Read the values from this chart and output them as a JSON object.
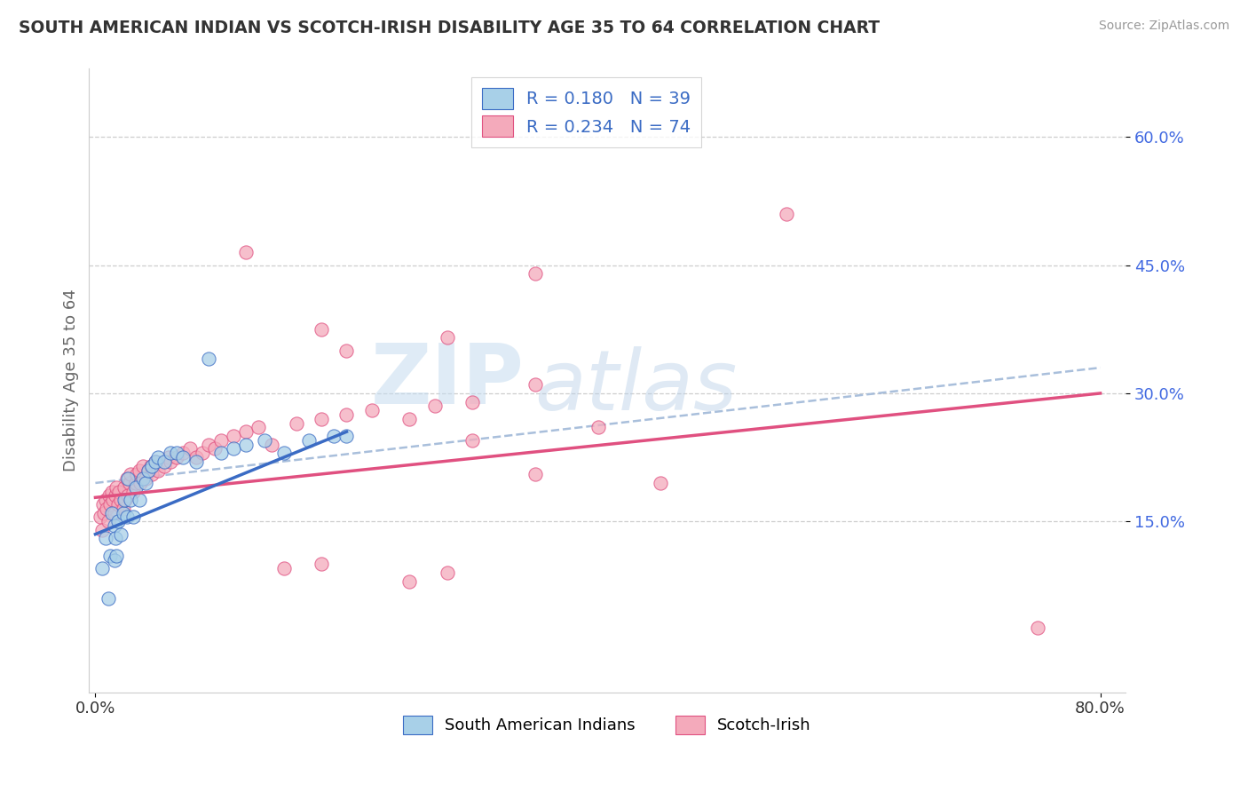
{
  "title": "SOUTH AMERICAN INDIAN VS SCOTCH-IRISH DISABILITY AGE 35 TO 64 CORRELATION CHART",
  "source": "Source: ZipAtlas.com",
  "ylabel": "Disability Age 35 to 64",
  "xlim": [
    -0.005,
    0.82
  ],
  "ylim": [
    -0.05,
    0.68
  ],
  "xticks": [
    0.0,
    0.8
  ],
  "xticklabels": [
    "0.0%",
    "80.0%"
  ],
  "ytick_positions": [
    0.15,
    0.3,
    0.45,
    0.6
  ],
  "ytick_labels": [
    "15.0%",
    "30.0%",
    "45.0%",
    "60.0%"
  ],
  "legend_label1": "South American Indians",
  "legend_label2": "Scotch-Irish",
  "R1": 0.18,
  "N1": 39,
  "R2": 0.234,
  "N2": 74,
  "color1": "#A8D0E8",
  "color2": "#F4AABB",
  "line1_color": "#3A6BC4",
  "line2_color": "#E05080",
  "dash_color": "#A0B8D8",
  "blue_line_x": [
    0.0,
    0.2
  ],
  "blue_line_y": [
    0.135,
    0.255
  ],
  "pink_line_x": [
    0.0,
    0.8
  ],
  "pink_line_y": [
    0.178,
    0.3
  ],
  "dash_line_x": [
    0.0,
    0.8
  ],
  "dash_line_y": [
    0.195,
    0.33
  ],
  "scatter1_x": [
    0.005,
    0.008,
    0.01,
    0.012,
    0.013,
    0.015,
    0.015,
    0.016,
    0.017,
    0.018,
    0.02,
    0.022,
    0.023,
    0.025,
    0.026,
    0.028,
    0.03,
    0.032,
    0.035,
    0.038,
    0.04,
    0.042,
    0.045,
    0.048,
    0.05,
    0.055,
    0.06,
    0.065,
    0.07,
    0.08,
    0.09,
    0.1,
    0.11,
    0.12,
    0.135,
    0.15,
    0.17,
    0.19,
    0.2
  ],
  "scatter1_y": [
    0.095,
    0.13,
    0.06,
    0.11,
    0.16,
    0.105,
    0.145,
    0.13,
    0.11,
    0.15,
    0.135,
    0.16,
    0.175,
    0.155,
    0.2,
    0.175,
    0.155,
    0.19,
    0.175,
    0.2,
    0.195,
    0.21,
    0.215,
    0.22,
    0.225,
    0.22,
    0.23,
    0.23,
    0.225,
    0.22,
    0.34,
    0.23,
    0.235,
    0.24,
    0.245,
    0.23,
    0.245,
    0.25,
    0.25
  ],
  "scatter2_x": [
    0.004,
    0.005,
    0.006,
    0.007,
    0.008,
    0.009,
    0.01,
    0.011,
    0.012,
    0.013,
    0.014,
    0.015,
    0.016,
    0.017,
    0.018,
    0.019,
    0.02,
    0.022,
    0.023,
    0.024,
    0.025,
    0.026,
    0.027,
    0.028,
    0.03,
    0.032,
    0.033,
    0.035,
    0.036,
    0.038,
    0.04,
    0.042,
    0.044,
    0.045,
    0.048,
    0.05,
    0.055,
    0.058,
    0.06,
    0.065,
    0.07,
    0.075,
    0.08,
    0.085,
    0.09,
    0.095,
    0.1,
    0.11,
    0.12,
    0.13,
    0.14,
    0.16,
    0.18,
    0.2,
    0.22,
    0.25,
    0.27,
    0.3,
    0.35,
    0.4,
    0.18,
    0.12,
    0.35,
    0.55,
    0.28,
    0.2,
    0.35,
    0.45,
    0.3,
    0.75,
    0.25,
    0.28,
    0.18,
    0.15
  ],
  "scatter2_y": [
    0.155,
    0.14,
    0.17,
    0.16,
    0.175,
    0.165,
    0.15,
    0.18,
    0.17,
    0.185,
    0.175,
    0.16,
    0.18,
    0.19,
    0.17,
    0.185,
    0.175,
    0.165,
    0.19,
    0.175,
    0.2,
    0.18,
    0.195,
    0.205,
    0.185,
    0.195,
    0.205,
    0.21,
    0.195,
    0.215,
    0.2,
    0.21,
    0.215,
    0.205,
    0.22,
    0.21,
    0.215,
    0.225,
    0.22,
    0.225,
    0.23,
    0.235,
    0.225,
    0.23,
    0.24,
    0.235,
    0.245,
    0.25,
    0.255,
    0.26,
    0.24,
    0.265,
    0.27,
    0.275,
    0.28,
    0.27,
    0.285,
    0.29,
    0.31,
    0.26,
    0.375,
    0.465,
    0.44,
    0.51,
    0.365,
    0.35,
    0.205,
    0.195,
    0.245,
    0.025,
    0.08,
    0.09,
    0.1,
    0.095
  ],
  "watermark_zip": "ZIP",
  "watermark_atlas": "atlas",
  "grid_color": "#C8C8C8",
  "background_color": "#FFFFFF"
}
